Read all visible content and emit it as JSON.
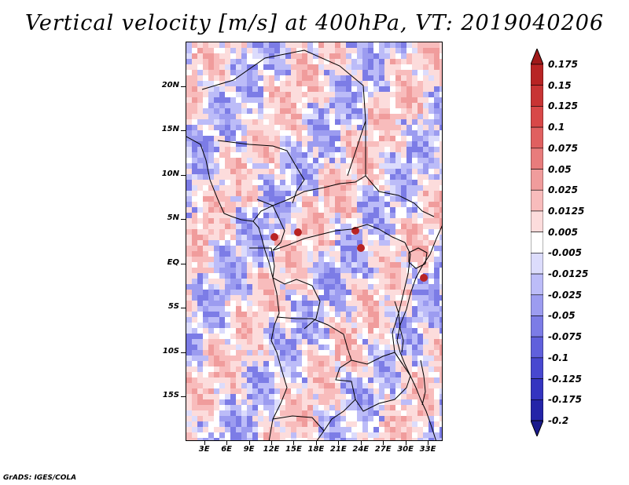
{
  "title": "Vertical velocity [m/s] at 400hPa, VT: 2019040206",
  "credit": "GrADS: IGES/COLA",
  "map": {
    "lat_labels": [
      "20N",
      "15N",
      "10N",
      "5N",
      "EQ",
      "5S",
      "10S",
      "15S"
    ],
    "lon_labels": [
      "3E",
      "6E",
      "9E",
      "12E",
      "15E",
      "18E",
      "21E",
      "24E",
      "27E",
      "30E",
      "33E"
    ],
    "lat_values": [
      20,
      15,
      10,
      5,
      0,
      -5,
      -10,
      -15
    ],
    "lon_values": [
      3,
      6,
      9,
      12,
      15,
      18,
      21,
      24,
      27,
      30,
      33
    ],
    "lat_range": [
      -20,
      25
    ],
    "lon_range": [
      0.5,
      35
    ]
  },
  "colorbar": {
    "labels": [
      "0.175",
      "0.15",
      "0.125",
      "0.1",
      "0.075",
      "0.05",
      "0.025",
      "0.0125",
      "0.005",
      "-0.005",
      "-0.0125",
      "-0.025",
      "-0.05",
      "-0.075",
      "-0.1",
      "-0.125",
      "-0.175",
      "-0.2"
    ],
    "colors": [
      "#a01a1a",
      "#b82424",
      "#c83434",
      "#d84848",
      "#e06060",
      "#e87c7c",
      "#f09c9c",
      "#f8bcbc",
      "#fcdcdc",
      "#ffffff",
      "#dcdcfc",
      "#bcbcf8",
      "#9c9cf0",
      "#7c7ce6",
      "#6060dc",
      "#4848d0",
      "#3434c0",
      "#2424a8",
      "#1a1a8c"
    ]
  }
}
